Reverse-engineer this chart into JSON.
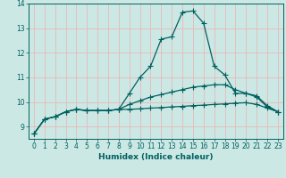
{
  "xlabel": "Humidex (Indice chaleur)",
  "bg_color": "#cce8e4",
  "grid_color": "#e8b8b8",
  "line_color": "#006060",
  "x_values": [
    0,
    1,
    2,
    3,
    4,
    5,
    6,
    7,
    8,
    9,
    10,
    11,
    12,
    13,
    14,
    15,
    16,
    17,
    18,
    19,
    20,
    21,
    22,
    23
  ],
  "line1": [
    8.7,
    9.3,
    9.4,
    9.6,
    9.7,
    9.65,
    9.65,
    9.65,
    9.7,
    10.35,
    11.0,
    11.45,
    12.55,
    12.65,
    13.65,
    13.7,
    13.2,
    11.45,
    11.1,
    10.35,
    10.35,
    10.2,
    9.8,
    9.6
  ],
  "line2": [
    8.7,
    9.3,
    9.4,
    9.6,
    9.7,
    9.65,
    9.65,
    9.65,
    9.7,
    9.9,
    10.05,
    10.2,
    10.3,
    10.4,
    10.5,
    10.6,
    10.65,
    10.7,
    10.7,
    10.5,
    10.35,
    10.25,
    9.85,
    9.6
  ],
  "line3": [
    8.7,
    9.3,
    9.4,
    9.6,
    9.7,
    9.65,
    9.65,
    9.65,
    9.7,
    9.7,
    9.72,
    9.75,
    9.77,
    9.8,
    9.82,
    9.85,
    9.87,
    9.9,
    9.92,
    9.95,
    9.97,
    9.9,
    9.75,
    9.6
  ],
  "ylim": [
    8.5,
    14.0
  ],
  "xlim": [
    -0.5,
    23.5
  ],
  "yticks": [
    9,
    10,
    11,
    12,
    13,
    14
  ],
  "xticks": [
    0,
    1,
    2,
    3,
    4,
    5,
    6,
    7,
    8,
    9,
    10,
    11,
    12,
    13,
    14,
    15,
    16,
    17,
    18,
    19,
    20,
    21,
    22,
    23
  ],
  "markersize": 3,
  "linewidth": 0.9,
  "tick_fontsize": 5.5,
  "label_fontsize": 6.5
}
